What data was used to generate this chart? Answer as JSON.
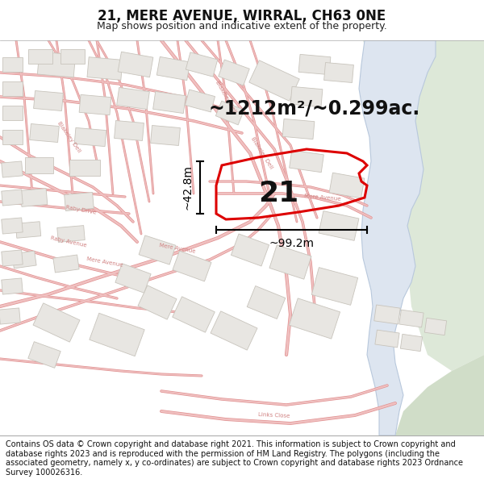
{
  "title": "21, MERE AVENUE, WIRRAL, CH63 0NE",
  "subtitle": "Map shows position and indicative extent of the property.",
  "area_text": "~1212m²/~0.299ac.",
  "label_number": "21",
  "dim_width": "~99.2m",
  "dim_height": "~42.8m",
  "footer": "Contains OS data © Crown copyright and database right 2021. This information is subject to Crown copyright and database rights 2023 and is reproduced with the permission of HM Land Registry. The polygons (including the associated geometry, namely x, y co-ordinates) are subject to Crown copyright and database rights 2023 Ordnance Survey 100026316.",
  "bg_color": "#f8f7f5",
  "green_color": "#dde8d8",
  "green2_color": "#d0ddc8",
  "water_color": "#dde5f0",
  "water_edge": "#b8c8dc",
  "road_color": "#f0c0c0",
  "road_edge": "#e09090",
  "building_fill": "#e8e6e2",
  "building_edge": "#c8c4bc",
  "highlight_color": "#dd0000",
  "highlight_lw": 2.2,
  "title_fontsize": 12,
  "subtitle_fontsize": 9,
  "area_fontsize": 17,
  "number_fontsize": 26,
  "dim_fontsize": 10,
  "road_label_fontsize": 5,
  "road_label_color": "#d08080",
  "footer_fontsize": 7
}
